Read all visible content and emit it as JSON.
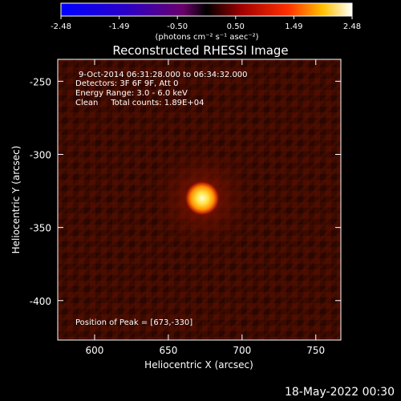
{
  "chart_data": {
    "type": "heatmap",
    "title": "Reconstructed RHESSI Image",
    "xlabel": "Heliocentric X (arcsec)",
    "ylabel": "Heliocentric Y (arcsec)",
    "xlim": [
      575,
      767
    ],
    "ylim": [
      -427,
      -235
    ],
    "x_ticks": [
      600,
      650,
      700,
      750
    ],
    "y_ticks": [
      -250,
      -300,
      -350,
      -400
    ],
    "colorbar": {
      "ticks": [
        "-2.48",
        "-1.49",
        "-0.50",
        "0.50",
        "1.49",
        "2.48"
      ],
      "range": [
        -2.48,
        2.48
      ],
      "label": "(photons cm⁻² s⁻¹ asec⁻²)",
      "colormap": "blue-purple-red-yellow-white"
    },
    "peak": {
      "x": 673,
      "y": -330
    },
    "annotations": [
      "9-Oct-2014 06:31:28.000 to 06:34:32.000",
      "Detectors: 3F 6F 9F, Att 0",
      "Energy Range: 3.0 - 6.0 keV",
      "Clean     Total counts: 1.89E+04"
    ],
    "peak_text": "Position of Peak = [673,-330]"
  },
  "footer": {
    "date": "18-May-2022 00:30"
  },
  "colors": {
    "background": "#000000",
    "map_base": "#3a0800",
    "peak": "#fff3a0"
  }
}
